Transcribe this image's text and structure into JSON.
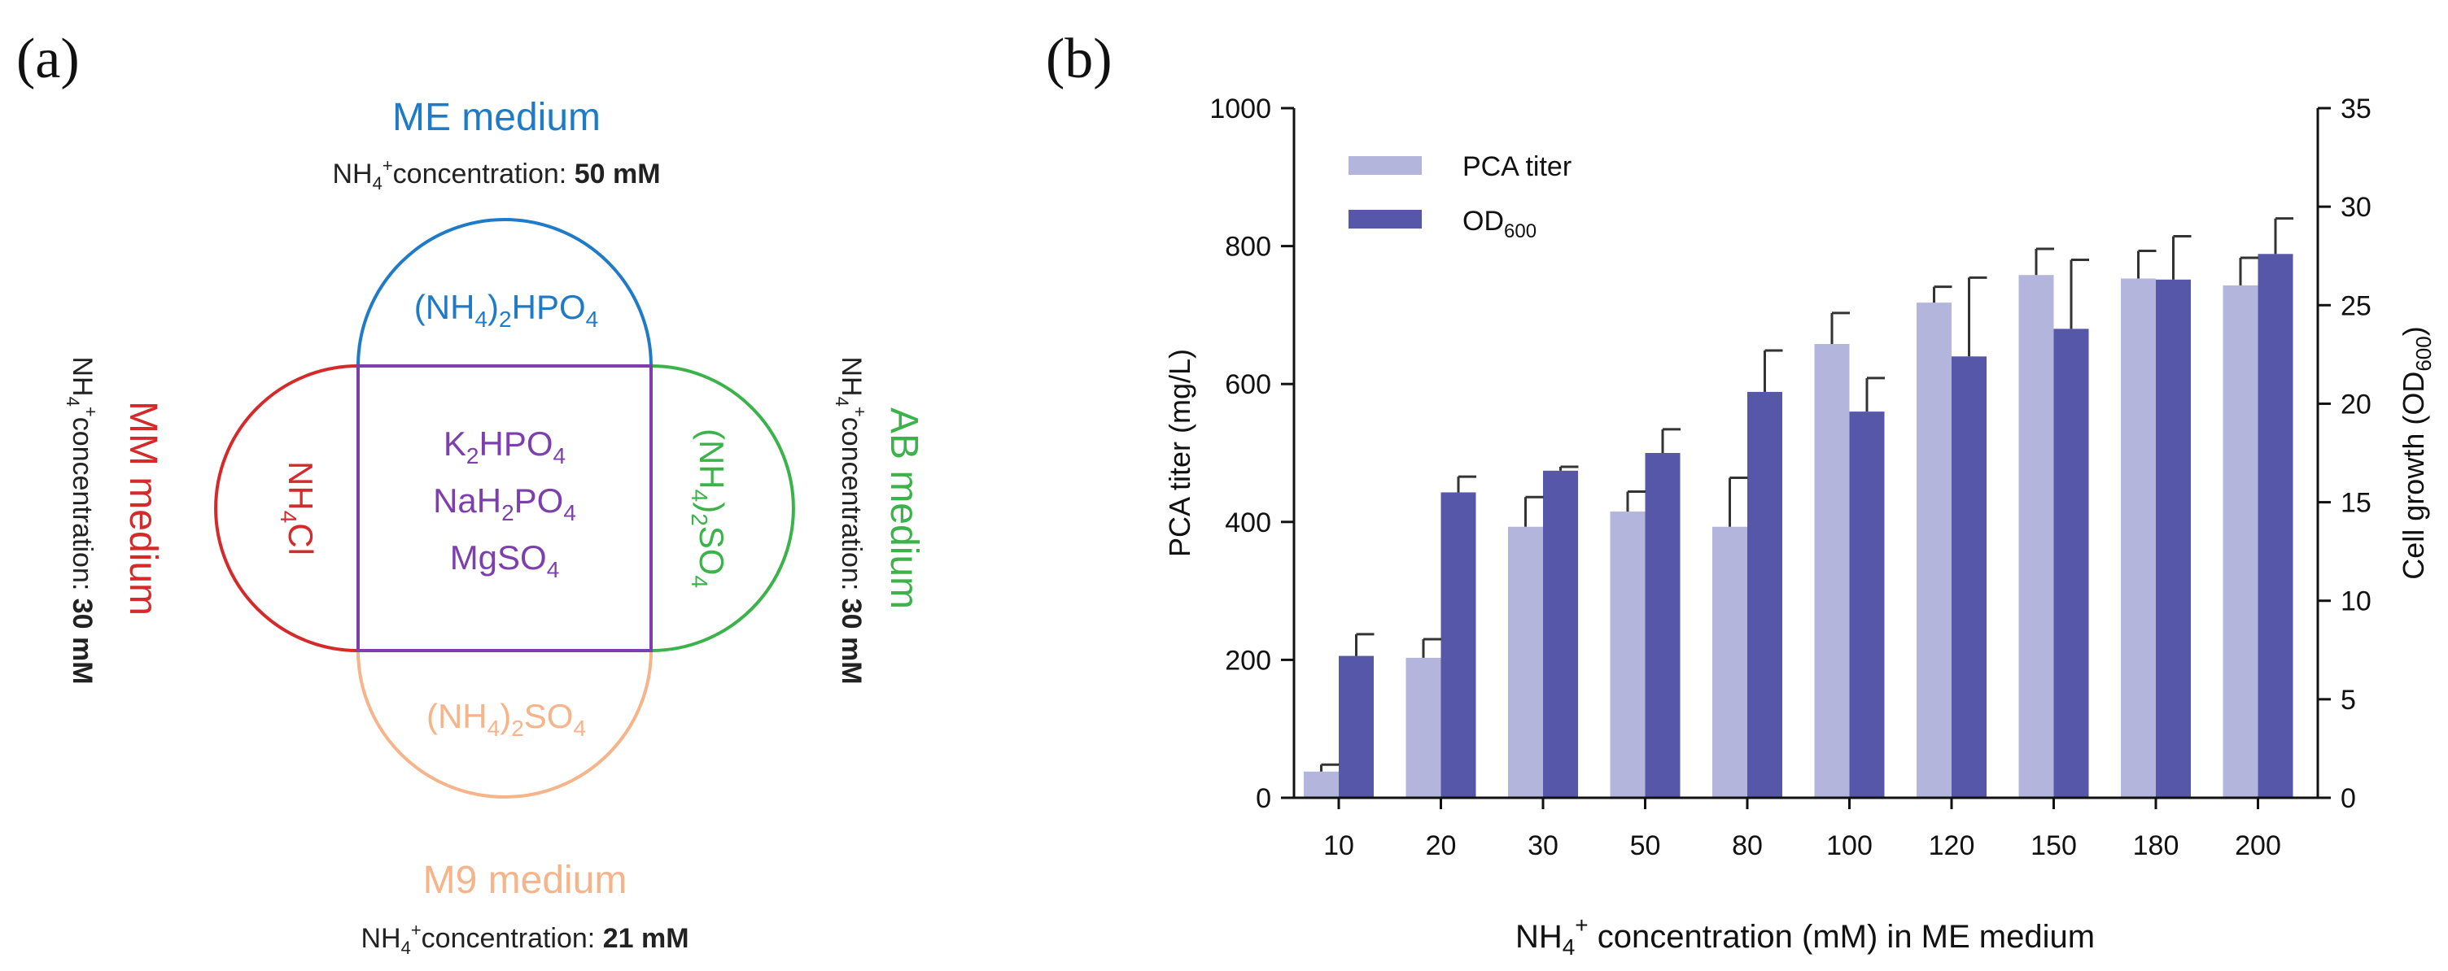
{
  "panel_a": {
    "label": "(a)",
    "colors": {
      "me": "#1f7bc8",
      "mm": "#d42a2a",
      "ab": "#3bb34a",
      "m9": "#f5b48a",
      "core": "#7d3fae"
    },
    "me": {
      "name": "ME medium",
      "conc_prefix": "concentration: ",
      "conc_value": "50 mM",
      "salt_a": "(NH",
      "salt_b": ")",
      "salt_c": "HPO"
    },
    "mm": {
      "name": "MM medium",
      "conc_prefix": "concentration: ",
      "conc_value": "30 mM",
      "salt_a": "NH",
      "salt_b": "Cl"
    },
    "ab": {
      "name": "AB medium",
      "conc_prefix": "concentration: ",
      "conc_value": "30 mM",
      "salt_a": "(NH",
      "salt_b": ")",
      "salt_c": "SO"
    },
    "m9": {
      "name": "M9 medium",
      "conc_prefix": "concentration: ",
      "conc_value": "21 mM",
      "salt_a": "(NH",
      "salt_b": ")",
      "salt_c": "SO"
    },
    "core": {
      "line1_a": "K",
      "line1_b": "HPO",
      "line2_a": "NaH",
      "line2_b": "PO",
      "line3_a": "MgSO"
    },
    "nh_text": "NH",
    "sub4": "4",
    "sub2": "2",
    "plus": "+"
  },
  "chart_data": {
    "panel_label": "(b)",
    "type": "bar",
    "categories": [
      "10",
      "20",
      "30",
      "50",
      "80",
      "100",
      "120",
      "150",
      "180",
      "200"
    ],
    "series": [
      {
        "name": "PCA titer",
        "axis": "left",
        "color": "#b3b5dd",
        "values": [
          38,
          203,
          393,
          415,
          393,
          658,
          718,
          758,
          753,
          743
        ],
        "errors": [
          10,
          27,
          43,
          29,
          71,
          45,
          23,
          38,
          40,
          40
        ]
      },
      {
        "name": "OD",
        "name_sub": "600",
        "axis": "right",
        "color": "#5757aa",
        "values": [
          7.2,
          15.5,
          16.6,
          17.5,
          20.6,
          19.6,
          22.4,
          23.8,
          26.3,
          27.6
        ],
        "errors": [
          1.1,
          0.8,
          0.2,
          1.2,
          2.1,
          1.7,
          4.0,
          3.5,
          2.2,
          1.8
        ]
      }
    ],
    "xlabel_a": "NH",
    "xlabel_sub": "4",
    "xlabel_sup": "+",
    "xlabel_b": " concentration (mM) in ME medium",
    "ylabel_left": "PCA titer (mg/L)",
    "ylabel_right_a": "Cell growth (OD",
    "ylabel_right_sub": "600",
    "ylabel_right_b": ")",
    "ylim_left": [
      0,
      1000
    ],
    "yticks_left": [
      "0",
      "200",
      "400",
      "600",
      "800",
      "1000"
    ],
    "ylim_right": [
      0,
      35
    ],
    "yticks_right": [
      "0",
      "5",
      "10",
      "15",
      "20",
      "25",
      "30",
      "35"
    ],
    "legend_position": "top-left",
    "grid": false
  }
}
